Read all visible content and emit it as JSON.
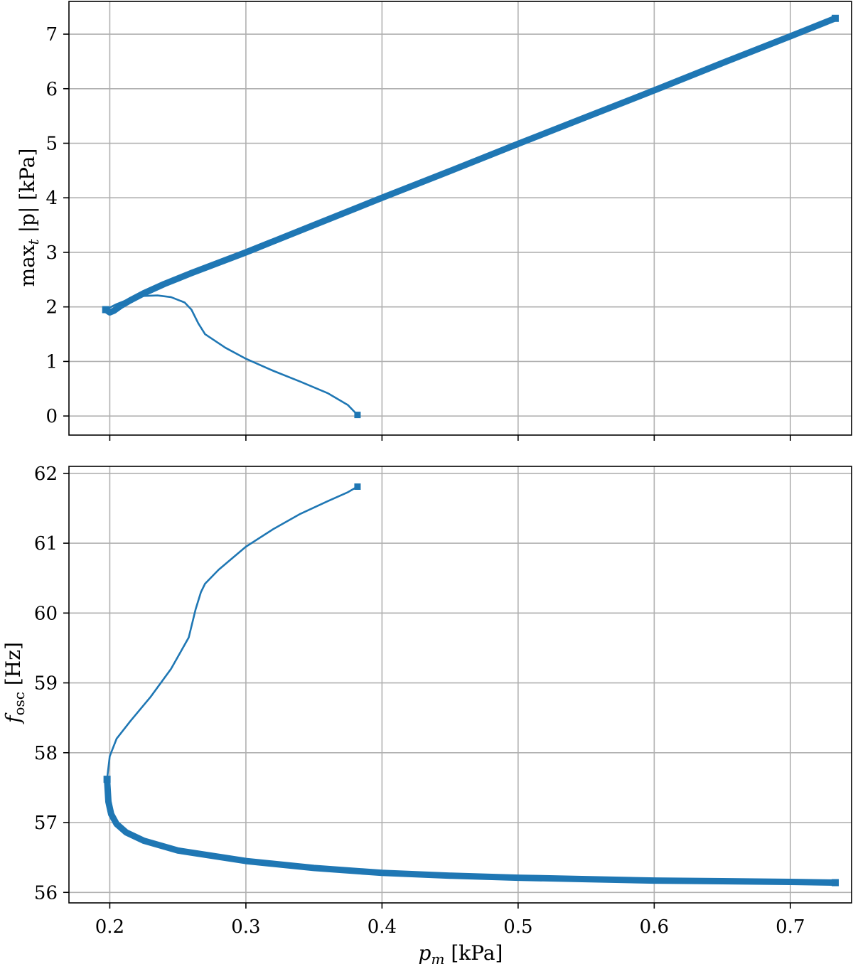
{
  "chart_data": [
    {
      "type": "line",
      "ylabel_parts": {
        "a": "max",
        "b": "t",
        "c": " |p| [kPa]"
      },
      "xlim": [
        0.17,
        0.745
      ],
      "ylim": [
        -0.35,
        7.6
      ],
      "xticks": [
        0.2,
        0.3,
        0.4,
        0.5,
        0.6,
        0.7
      ],
      "xtick_labels": [
        "",
        "",
        "",
        "",
        "",
        ""
      ],
      "yticks": [
        0,
        1,
        2,
        3,
        4,
        5,
        6,
        7
      ],
      "ytick_labels": [
        "0",
        "1",
        "2",
        "3",
        "4",
        "5",
        "6",
        "7"
      ],
      "grid": true,
      "series": [
        {
          "style": "thick",
          "x": [
            0.197,
            0.2,
            0.203,
            0.208,
            0.215,
            0.225,
            0.24,
            0.26,
            0.3,
            0.35,
            0.4,
            0.45,
            0.5,
            0.55,
            0.6,
            0.65,
            0.7,
            0.733
          ],
          "y": [
            1.95,
            1.9,
            1.93,
            2.02,
            2.12,
            2.25,
            2.42,
            2.62,
            3.0,
            3.5,
            4.0,
            4.49,
            4.99,
            5.48,
            5.97,
            6.47,
            6.96,
            7.29
          ]
        },
        {
          "style": "thin",
          "x": [
            0.197,
            0.205,
            0.215,
            0.225,
            0.235,
            0.245,
            0.255,
            0.26,
            0.265,
            0.27,
            0.285,
            0.3,
            0.32,
            0.34,
            0.36,
            0.375,
            0.382
          ],
          "y": [
            1.95,
            2.05,
            2.15,
            2.2,
            2.21,
            2.18,
            2.08,
            1.95,
            1.7,
            1.5,
            1.25,
            1.05,
            0.83,
            0.63,
            0.42,
            0.2,
            0.02
          ]
        }
      ]
    },
    {
      "type": "line",
      "ylabel_parts": {
        "a": "f",
        "b": "osc",
        "c": " [Hz]"
      },
      "xlabel_parts": {
        "a": "p",
        "b": "m",
        "c": " [kPa]"
      },
      "xlim": [
        0.17,
        0.745
      ],
      "ylim": [
        55.85,
        62.1
      ],
      "xticks": [
        0.2,
        0.3,
        0.4,
        0.5,
        0.6,
        0.7
      ],
      "xtick_labels": [
        "0.2",
        "0.3",
        "0.4",
        "0.5",
        "0.6",
        "0.7"
      ],
      "yticks": [
        56,
        57,
        58,
        59,
        60,
        61,
        62
      ],
      "ytick_labels": [
        "56",
        "57",
        "58",
        "59",
        "60",
        "61",
        "62"
      ],
      "grid": true,
      "series": [
        {
          "style": "thick",
          "x": [
            0.198,
            0.199,
            0.201,
            0.205,
            0.212,
            0.225,
            0.25,
            0.3,
            0.35,
            0.4,
            0.45,
            0.5,
            0.55,
            0.6,
            0.65,
            0.7,
            0.733
          ],
          "y": [
            57.62,
            57.3,
            57.12,
            56.98,
            56.86,
            56.74,
            56.6,
            56.45,
            56.35,
            56.28,
            56.24,
            56.21,
            56.19,
            56.17,
            56.16,
            56.15,
            56.14
          ]
        },
        {
          "style": "thin",
          "x": [
            0.198,
            0.2,
            0.205,
            0.215,
            0.23,
            0.245,
            0.258,
            0.263,
            0.267,
            0.27,
            0.28,
            0.3,
            0.32,
            0.34,
            0.36,
            0.375,
            0.382
          ],
          "y": [
            57.62,
            57.95,
            58.2,
            58.45,
            58.8,
            59.2,
            59.65,
            60.05,
            60.3,
            60.42,
            60.62,
            60.95,
            61.2,
            61.42,
            61.6,
            61.73,
            61.81
          ]
        }
      ]
    }
  ]
}
